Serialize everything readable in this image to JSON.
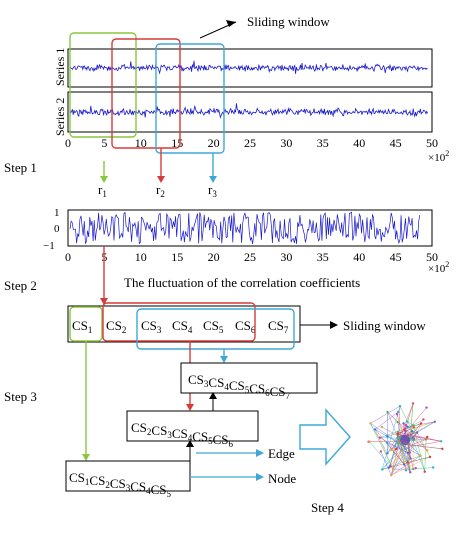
{
  "annotations": {
    "sliding_window_top": "Sliding window",
    "sliding_window_mid": "Sliding window"
  },
  "series_labels": {
    "s1": "Series 1",
    "s2": "Series 2"
  },
  "axis": {
    "ticks": [
      "0",
      "5",
      "10",
      "15",
      "20",
      "25",
      "30",
      "35",
      "40",
      "45",
      "50"
    ],
    "exp_base": "×10",
    "exp_power": "2",
    "corr_y_ticks": [
      "1",
      "0",
      "−1"
    ]
  },
  "r_labels": [
    {
      "base": "r",
      "sub": "1"
    },
    {
      "base": "r",
      "sub": "2"
    },
    {
      "base": "r",
      "sub": "3"
    }
  ],
  "steps": {
    "s1": "Step 1",
    "s2": "Step 2",
    "s3": "Step 3",
    "s4": "Step 4"
  },
  "correlation_caption": "The fluctuation of the correlation coefficients",
  "cs_sequence": [
    {
      "base": "CS",
      "sub": "1"
    },
    {
      "base": "CS",
      "sub": "2"
    },
    {
      "base": "CS",
      "sub": "3"
    },
    {
      "base": "CS",
      "sub": "4"
    },
    {
      "base": "CS",
      "sub": "5"
    },
    {
      "base": "CS",
      "sub": "6"
    },
    {
      "base": "CS",
      "sub": "7"
    }
  ],
  "node_boxes": {
    "top": [
      "3",
      "4",
      "5",
      "6",
      "7"
    ],
    "middle": [
      "2",
      "3",
      "4",
      "5",
      "6"
    ],
    "bottom": [
      "1",
      "2",
      "3",
      "4",
      "5"
    ],
    "cs_prefix": "CS"
  },
  "legend": {
    "edge": "Edge",
    "node": "Node"
  },
  "colors": {
    "green": "#8cc63e",
    "red": "#d83a3a",
    "blue": "#3ea7d8",
    "series": "#1a1acc",
    "black": "#000000"
  }
}
